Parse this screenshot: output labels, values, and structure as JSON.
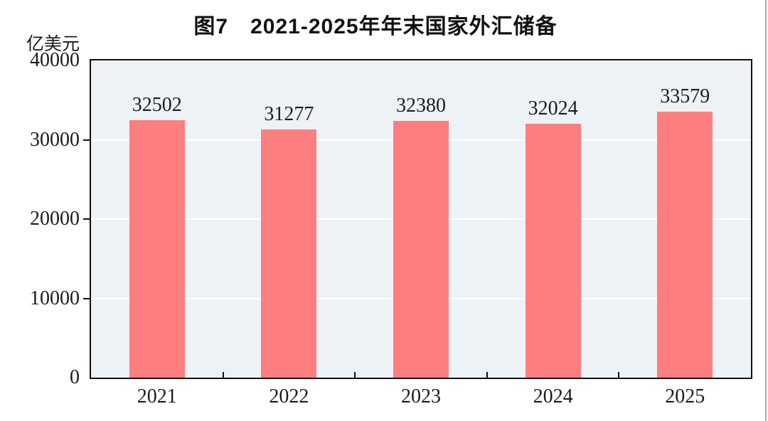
{
  "chart_data": {
    "type": "bar",
    "title": "图7　2021-2025年年末国家外汇储备",
    "ylabel": "亿美元",
    "xlabel": "",
    "categories": [
      "2021",
      "2022",
      "2023",
      "2024",
      "2025"
    ],
    "values": [
      32502,
      31277,
      32380,
      32024,
      33579
    ],
    "data_labels": [
      "32502",
      "31277",
      "32380",
      "32024",
      "33579"
    ],
    "ylim": [
      0,
      40000
    ],
    "yticks": [
      0,
      10000,
      20000,
      30000,
      40000
    ],
    "grid": "horizontal-white",
    "legend": "none",
    "colors": {
      "bar": "#fc7e7e",
      "plot_background": "#edf2f7",
      "gridline": "#ffffff",
      "axis": "#111111",
      "text": "#1c1c1c"
    }
  }
}
